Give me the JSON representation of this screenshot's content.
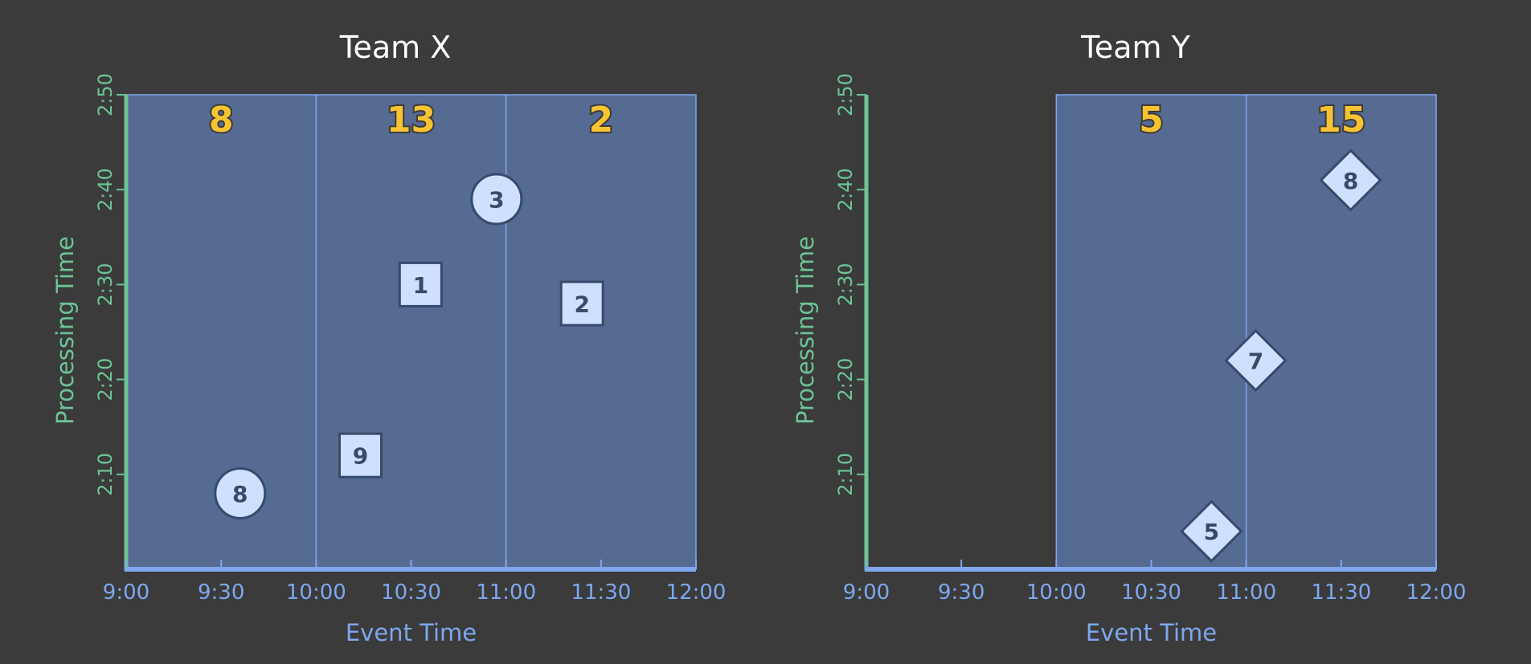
{
  "chart_data": [
    {
      "type": "scatter",
      "title": "Team X",
      "xlabel": "Event Time",
      "ylabel": "Processing Time",
      "x_ticks": [
        "9:00",
        "9:30",
        "10:00",
        "10:30",
        "11:00",
        "11:30",
        "12:00"
      ],
      "y_ticks": [
        "2:10",
        "2:20",
        "2:30",
        "2:40",
        "2:50"
      ],
      "xlim": [
        "9:00",
        "12:00"
      ],
      "ylim": [
        "2:00",
        "2:50"
      ],
      "windows": [
        {
          "start": "9:00",
          "end": "10:00",
          "count": "8"
        },
        {
          "start": "10:00",
          "end": "11:00",
          "count": "13"
        },
        {
          "start": "11:00",
          "end": "12:00",
          "count": "2"
        }
      ],
      "points": [
        {
          "event_time": "9:36",
          "processing_time": "2:08",
          "value": "8",
          "shape": "circle"
        },
        {
          "event_time": "10:14",
          "processing_time": "2:12",
          "value": "9",
          "shape": "square"
        },
        {
          "event_time": "10:33",
          "processing_time": "2:30",
          "value": "1",
          "shape": "square"
        },
        {
          "event_time": "10:57",
          "processing_time": "2:39",
          "value": "3",
          "shape": "circle"
        },
        {
          "event_time": "11:24",
          "processing_time": "2:28",
          "value": "2",
          "shape": "square"
        }
      ]
    },
    {
      "type": "scatter",
      "title": "Team Y",
      "xlabel": "Event Time",
      "ylabel": "Processing Time",
      "x_ticks": [
        "9:00",
        "9:30",
        "10:00",
        "10:30",
        "11:00",
        "11:30",
        "12:00"
      ],
      "y_ticks": [
        "2:10",
        "2:20",
        "2:30",
        "2:40",
        "2:50"
      ],
      "xlim": [
        "9:00",
        "12:00"
      ],
      "ylim": [
        "2:00",
        "2:50"
      ],
      "windows": [
        {
          "start": "10:00",
          "end": "11:00",
          "count": "5"
        },
        {
          "start": "11:00",
          "end": "12:00",
          "count": "15"
        }
      ],
      "points": [
        {
          "event_time": "10:49",
          "processing_time": "2:04",
          "value": "5",
          "shape": "diamond"
        },
        {
          "event_time": "11:03",
          "processing_time": "2:22",
          "value": "7",
          "shape": "diamond"
        },
        {
          "event_time": "11:33",
          "processing_time": "2:41",
          "value": "8",
          "shape": "diamond"
        }
      ]
    }
  ],
  "colors": {
    "background": "#3b3b3b",
    "window_fill": "#566b92",
    "window_line": "#7ea7ee",
    "x_axis": "#7ea7ee",
    "y_axis": "#6dc494",
    "count": "#f7c331",
    "marker_fill": "#cfe0ff",
    "marker_stroke": "#364a6b"
  }
}
